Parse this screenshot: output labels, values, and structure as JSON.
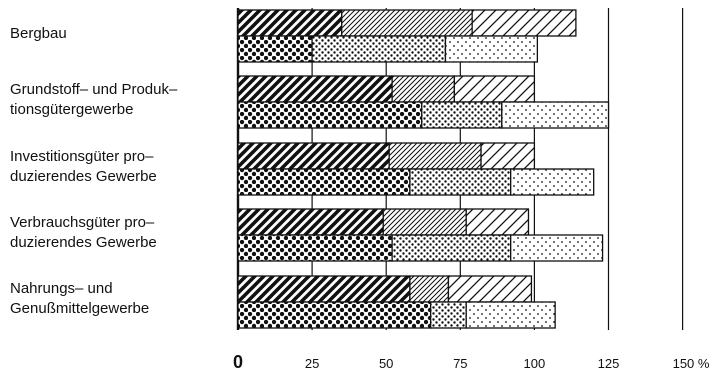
{
  "chart_data": {
    "type": "bar",
    "orientation": "horizontal",
    "stacked": true,
    "unit": "%",
    "categories": [
      "Bergbau",
      "Grundstoff– und Produk–\ntionsgütergewerbe",
      "Investitionsgüter pro–\nduzierendes Gewerbe",
      "Verbrauchsgüter pro–\nduzierendes Gewerbe",
      "Nahrungs– und\nGenußmittelgewerbe"
    ],
    "bars": [
      [
        {
          "segments": [
            35,
            44,
            35
          ],
          "patterns": [
            "dense-hatch",
            "fine-hatch",
            "wide-hatch"
          ]
        },
        {
          "segments": [
            25,
            45,
            31
          ],
          "patterns": [
            "big-dots",
            "medium-dots",
            "small-dots"
          ]
        }
      ],
      [
        {
          "segments": [
            52,
            21,
            27
          ],
          "patterns": [
            "dense-hatch",
            "fine-hatch",
            "wide-hatch"
          ]
        },
        {
          "segments": [
            62,
            27,
            36
          ],
          "patterns": [
            "big-dots",
            "medium-dots",
            "small-dots"
          ]
        }
      ],
      [
        {
          "segments": [
            51,
            31,
            18
          ],
          "patterns": [
            "dense-hatch",
            "fine-hatch",
            "wide-hatch"
          ]
        },
        {
          "segments": [
            58,
            34,
            28
          ],
          "patterns": [
            "big-dots",
            "medium-dots",
            "small-dots"
          ]
        }
      ],
      [
        {
          "segments": [
            49,
            28,
            21
          ],
          "patterns": [
            "dense-hatch",
            "fine-hatch",
            "wide-hatch"
          ]
        },
        {
          "segments": [
            52,
            40,
            31
          ],
          "patterns": [
            "big-dots",
            "medium-dots",
            "small-dots"
          ]
        }
      ],
      [
        {
          "segments": [
            58,
            13,
            28
          ],
          "patterns": [
            "dense-hatch",
            "fine-hatch",
            "wide-hatch"
          ]
        },
        {
          "segments": [
            65,
            12,
            30
          ],
          "patterns": [
            "big-dots",
            "medium-dots",
            "small-dots"
          ]
        }
      ]
    ],
    "x_ticks": [
      {
        "value": 0,
        "label": "0"
      },
      {
        "value": 25,
        "label": "25"
      },
      {
        "value": 50,
        "label": "50"
      },
      {
        "value": 75,
        "label": "75"
      },
      {
        "value": 100,
        "label": "100"
      },
      {
        "value": 125,
        "label": "125"
      },
      {
        "value": 150,
        "label": "150 %"
      }
    ],
    "xlim": [
      0,
      150
    ],
    "grid": true,
    "title": "",
    "xlabel": "",
    "ylabel": ""
  }
}
